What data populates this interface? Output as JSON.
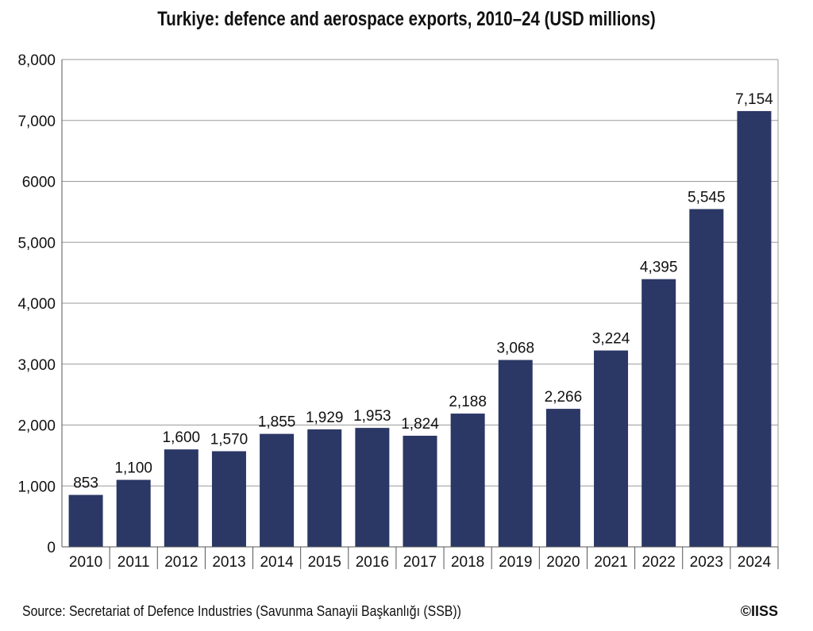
{
  "title": "Turkiye: defence and aerospace exports, 2010–24 (USD millions)",
  "source": "Source: Secretariat of Defence Industries (Savunma Sanayii Başkanlığı (SSB))",
  "credit": "©IISS",
  "colors": {
    "bar": "#2b3765",
    "grid": "#9a9a9a",
    "axis": "#555555"
  },
  "chart_data": {
    "type": "bar",
    "title": "Turkiye: defence and aerospace exports, 2010–24 (USD millions)",
    "xlabel": "",
    "ylabel": "",
    "categories": [
      "2010",
      "2011",
      "2012",
      "2013",
      "2014",
      "2015",
      "2016",
      "2017",
      "2018",
      "2019",
      "2020",
      "2021",
      "2022",
      "2023",
      "2024"
    ],
    "values": [
      853,
      1100,
      1600,
      1570,
      1855,
      1929,
      1953,
      1824,
      2188,
      3068,
      2266,
      3224,
      4395,
      5545,
      7154
    ],
    "data_labels": [
      "853",
      "1,100",
      "1,600",
      "1,570",
      "1,855",
      "1,929",
      "1,953",
      "1,824",
      "2,188",
      "3,068",
      "2,266",
      "3,224",
      "4,395",
      "5,545",
      "7,154"
    ],
    "ylim": [
      0,
      8000
    ],
    "yticks": [
      0,
      1000,
      2000,
      3000,
      4000,
      5000,
      6000,
      7000,
      8000
    ],
    "ytick_labels": [
      "0",
      "1,000",
      "2,000",
      "3,000",
      "4,000",
      "5,000",
      "6000",
      "7,000",
      "8,000"
    ],
    "grid": true,
    "legend": "none"
  }
}
